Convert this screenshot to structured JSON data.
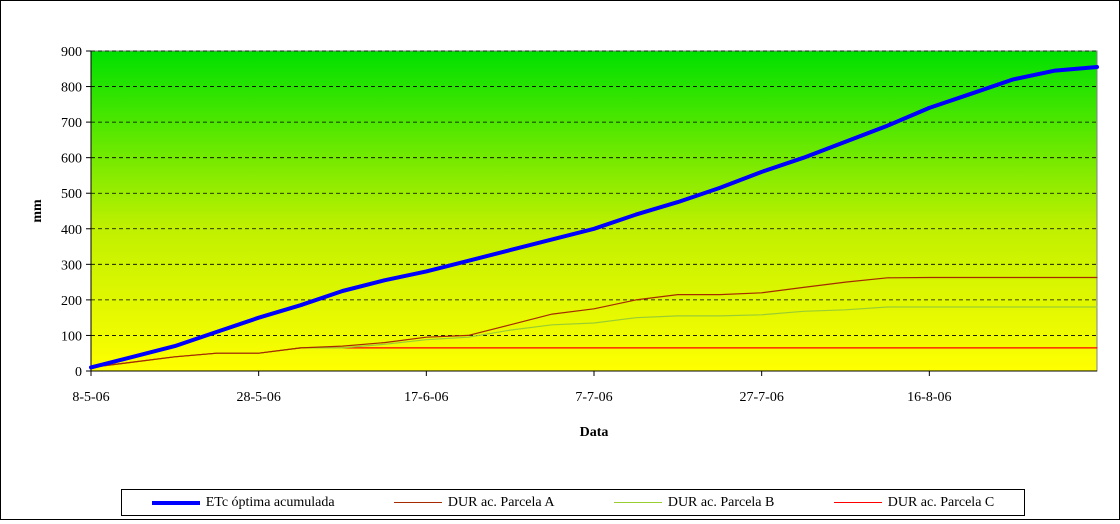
{
  "chart_data": {
    "type": "line",
    "title": "",
    "xlabel": "Data",
    "ylabel": "mm",
    "ylim": [
      0,
      900
    ],
    "yticks": [
      0,
      100,
      200,
      300,
      400,
      500,
      600,
      700,
      800,
      900
    ],
    "xlim": [
      "2006-05-08",
      "2006-09-05"
    ],
    "xticks": [
      {
        "date": "2006-05-08",
        "label": "8-5-06"
      },
      {
        "date": "2006-05-28",
        "label": "28-5-06"
      },
      {
        "date": "2006-06-17",
        "label": "17-6-06"
      },
      {
        "date": "2006-07-07",
        "label": "7-7-06"
      },
      {
        "date": "2006-07-27",
        "label": "27-7-06"
      },
      {
        "date": "2006-08-16",
        "label": "16-8-06"
      }
    ],
    "grid": "horizontal-dashed",
    "background": "vertical gradient green top to yellow bottom",
    "legend_position": "bottom",
    "series": [
      {
        "name": "ETc óptima acumulada",
        "color": "#0000ff",
        "points": [
          [
            "2006-05-08",
            10
          ],
          [
            "2006-05-13",
            40
          ],
          [
            "2006-05-18",
            70
          ],
          [
            "2006-05-23",
            110
          ],
          [
            "2006-05-28",
            150
          ],
          [
            "2006-06-02",
            185
          ],
          [
            "2006-06-07",
            225
          ],
          [
            "2006-06-12",
            255
          ],
          [
            "2006-06-17",
            280
          ],
          [
            "2006-06-22",
            310
          ],
          [
            "2006-06-27",
            340
          ],
          [
            "2006-07-02",
            370
          ],
          [
            "2006-07-07",
            400
          ],
          [
            "2006-07-12",
            440
          ],
          [
            "2006-07-17",
            475
          ],
          [
            "2006-07-22",
            515
          ],
          [
            "2006-07-27",
            560
          ],
          [
            "2006-08-01",
            600
          ],
          [
            "2006-08-06",
            645
          ],
          [
            "2006-08-11",
            690
          ],
          [
            "2006-08-16",
            740
          ],
          [
            "2006-08-21",
            780
          ],
          [
            "2006-08-26",
            820
          ],
          [
            "2006-08-31",
            845
          ],
          [
            "2006-09-05",
            855
          ]
        ]
      },
      {
        "name": "DUR ac. Parcela A",
        "color": "#a52a00",
        "points": [
          [
            "2006-05-08",
            10
          ],
          [
            "2006-05-13",
            25
          ],
          [
            "2006-05-18",
            40
          ],
          [
            "2006-05-23",
            50
          ],
          [
            "2006-05-28",
            50
          ],
          [
            "2006-06-02",
            65
          ],
          [
            "2006-06-07",
            70
          ],
          [
            "2006-06-12",
            80
          ],
          [
            "2006-06-17",
            95
          ],
          [
            "2006-06-22",
            100
          ],
          [
            "2006-06-27",
            130
          ],
          [
            "2006-07-02",
            160
          ],
          [
            "2006-07-07",
            175
          ],
          [
            "2006-07-12",
            200
          ],
          [
            "2006-07-17",
            215
          ],
          [
            "2006-07-22",
            215
          ],
          [
            "2006-07-27",
            220
          ],
          [
            "2006-08-01",
            235
          ],
          [
            "2006-08-06",
            250
          ],
          [
            "2006-08-11",
            262
          ],
          [
            "2006-08-16",
            263
          ],
          [
            "2006-09-05",
            263
          ]
        ]
      },
      {
        "name": "DUR ac. Parcela B",
        "color": "#9acd32",
        "points": [
          [
            "2006-05-08",
            10
          ],
          [
            "2006-05-13",
            25
          ],
          [
            "2006-05-18",
            40
          ],
          [
            "2006-05-23",
            50
          ],
          [
            "2006-05-28",
            50
          ],
          [
            "2006-06-02",
            65
          ],
          [
            "2006-06-07",
            65
          ],
          [
            "2006-06-12",
            75
          ],
          [
            "2006-06-17",
            88
          ],
          [
            "2006-06-22",
            95
          ],
          [
            "2006-06-27",
            115
          ],
          [
            "2006-07-02",
            130
          ],
          [
            "2006-07-07",
            135
          ],
          [
            "2006-07-12",
            150
          ],
          [
            "2006-07-17",
            155
          ],
          [
            "2006-07-22",
            155
          ],
          [
            "2006-07-27",
            158
          ],
          [
            "2006-08-01",
            168
          ],
          [
            "2006-08-06",
            172
          ],
          [
            "2006-08-11",
            180
          ],
          [
            "2006-08-16",
            180
          ],
          [
            "2006-09-05",
            180
          ]
        ]
      },
      {
        "name": "DUR ac. Parcela C",
        "color": "#ff0000",
        "points": [
          [
            "2006-05-08",
            10
          ],
          [
            "2006-05-13",
            25
          ],
          [
            "2006-05-18",
            40
          ],
          [
            "2006-05-23",
            50
          ],
          [
            "2006-05-28",
            50
          ],
          [
            "2006-06-02",
            65
          ],
          [
            "2006-06-07",
            65
          ],
          [
            "2006-09-05",
            65
          ]
        ]
      }
    ]
  }
}
